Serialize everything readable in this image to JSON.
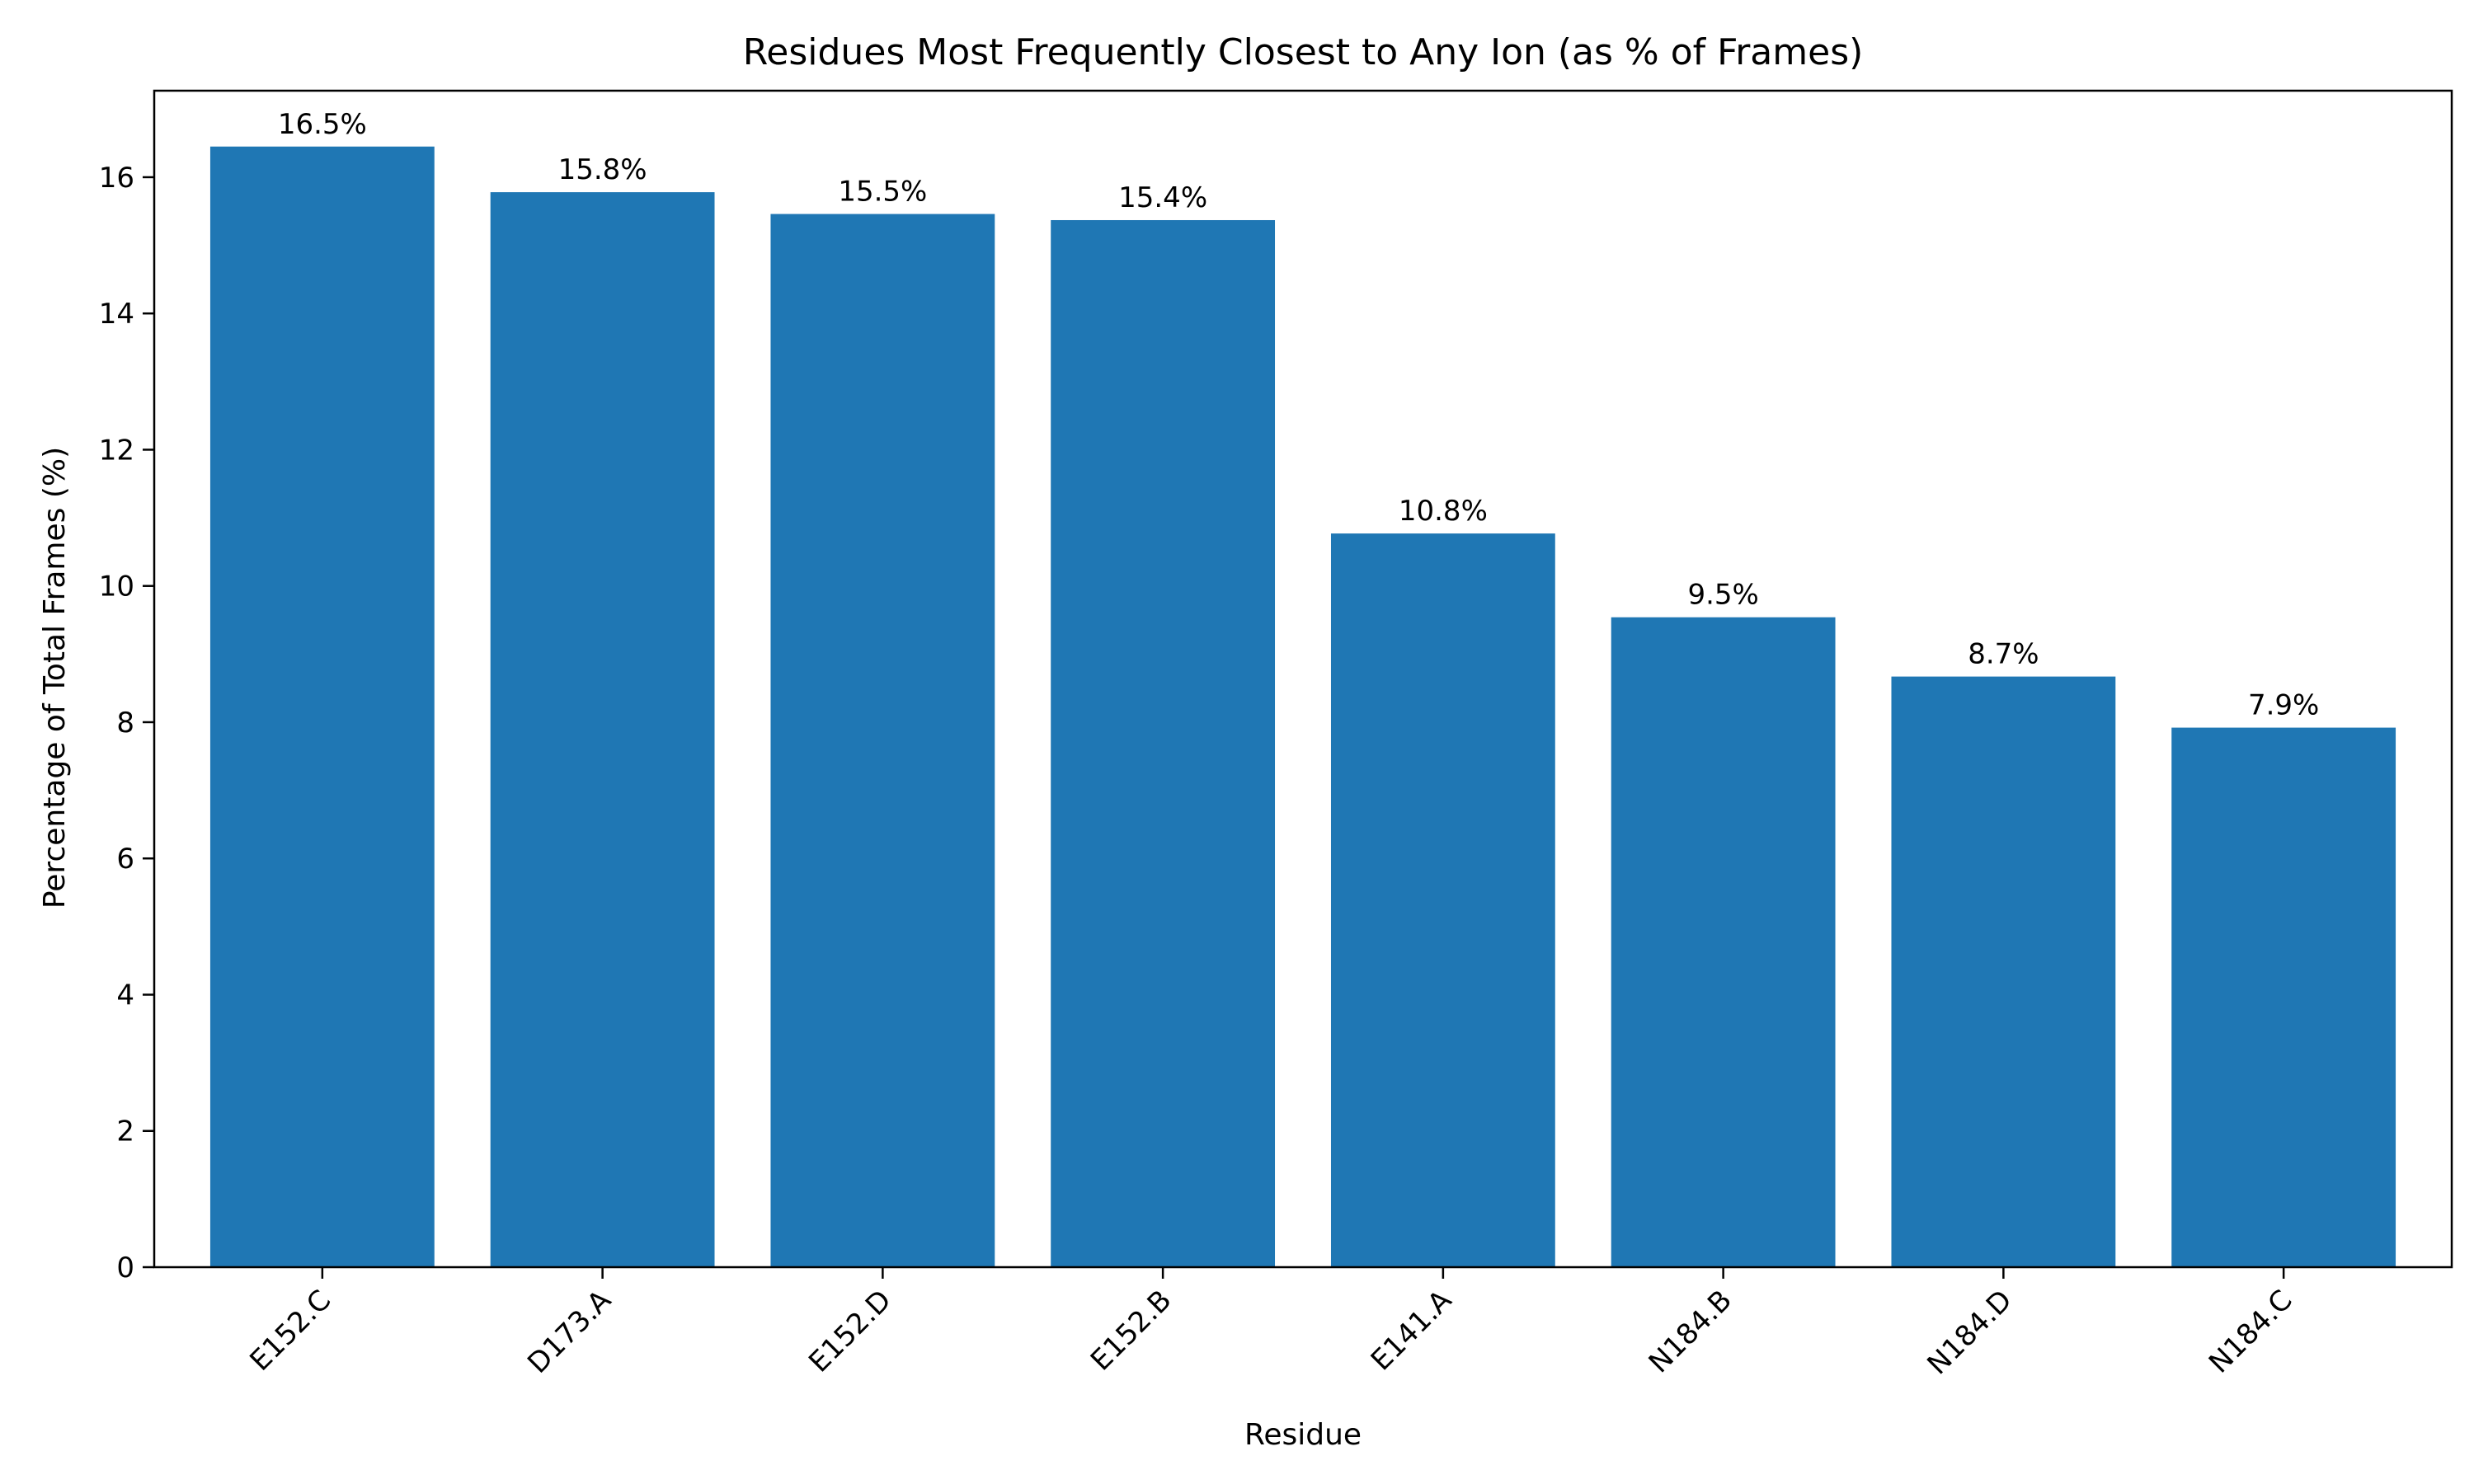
{
  "chart_data": {
    "type": "bar",
    "title": "Residues Most Frequently Closest to Any Ion (as % of Frames)",
    "xlabel": "Residue",
    "ylabel": "Percentage of Total Frames (%)",
    "categories": [
      "E152.C",
      "D173.A",
      "E152.D",
      "E152.B",
      "E141.A",
      "N184.B",
      "N184.D",
      "N184.C"
    ],
    "values": [
      16.45,
      15.78,
      15.46,
      15.37,
      10.77,
      9.54,
      8.67,
      7.92
    ],
    "value_labels": [
      "16.5%",
      "15.8%",
      "15.5%",
      "15.4%",
      "10.8%",
      "9.5%",
      "8.7%",
      "7.9%"
    ],
    "ylim": [
      0,
      17.27
    ],
    "yticks": [
      0,
      2,
      4,
      6,
      8,
      10,
      12,
      14,
      16
    ],
    "bar_color": "#1f77b4",
    "grid": false
  }
}
